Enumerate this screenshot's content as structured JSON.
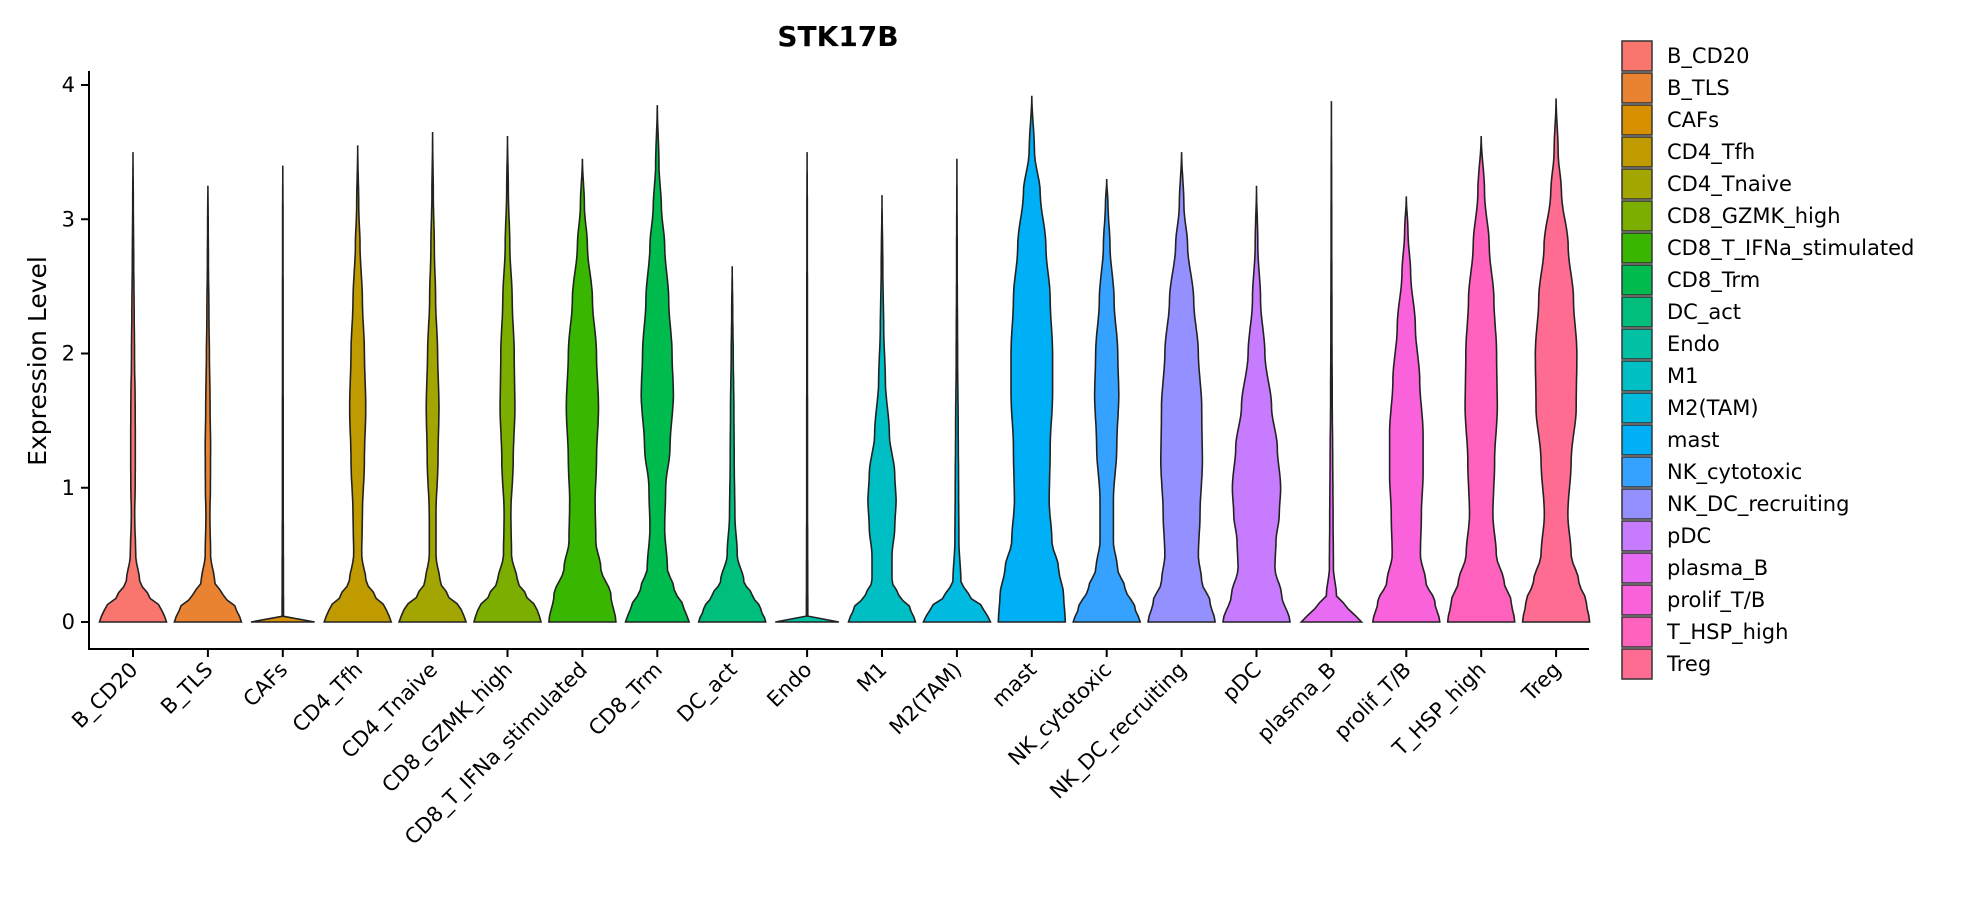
{
  "chart_data": {
    "type": "violin",
    "title": "STK17B",
    "xlabel": "",
    "ylabel": "Expression Level",
    "ylim": [
      -0.15,
      4.1
    ],
    "yticks": [
      0,
      1,
      2,
      3,
      4
    ],
    "ytick_labels": [
      "0",
      "1",
      "2",
      "3",
      "4"
    ],
    "legend_position": "right",
    "categories": [
      "B_CD20",
      "B_TLS",
      "CAFs",
      "CD4_Tfh",
      "CD4_Tnaive",
      "CD8_GZMK_high",
      "CD8_T_IFNa_stimulated",
      "CD8_Trm",
      "DC_act",
      "Endo",
      "M1",
      "M2(TAM)",
      "mast",
      "NK_cytotoxic",
      "NK_DC_recruiting",
      "pDC",
      "plasma_B",
      "prolif_T/B",
      "T_HSP_high",
      "Treg"
    ],
    "colors": [
      "#F8766D",
      "#EA8331",
      "#D89000",
      "#C09B00",
      "#A3A500",
      "#7CAE00",
      "#39B600",
      "#00BB4E",
      "#00BF7D",
      "#00C1A3",
      "#00BFC4",
      "#00BAE0",
      "#00B0F6",
      "#35A2FF",
      "#9590FF",
      "#C77CFF",
      "#E76BF3",
      "#FA62DB",
      "#FF62BC",
      "#FF6C91"
    ],
    "series": [
      {
        "name": "B_CD20",
        "max": 3.5,
        "profile": [
          [
            0,
            1.0
          ],
          [
            0.1,
            0.85
          ],
          [
            0.2,
            0.45
          ],
          [
            0.3,
            0.2
          ],
          [
            0.5,
            0.08
          ],
          [
            0.8,
            0.05
          ],
          [
            1.0,
            0.065
          ],
          [
            1.3,
            0.07
          ],
          [
            1.6,
            0.065
          ],
          [
            2.0,
            0.045
          ],
          [
            2.3,
            0.035
          ],
          [
            2.7,
            0.02
          ],
          [
            3.1,
            0.01
          ],
          [
            3.5,
            0.0
          ]
        ]
      },
      {
        "name": "B_TLS",
        "max": 3.25,
        "profile": [
          [
            0,
            1.0
          ],
          [
            0.1,
            0.85
          ],
          [
            0.2,
            0.45
          ],
          [
            0.3,
            0.2
          ],
          [
            0.5,
            0.08
          ],
          [
            0.8,
            0.06
          ],
          [
            1.0,
            0.075
          ],
          [
            1.3,
            0.08
          ],
          [
            1.6,
            0.065
          ],
          [
            2.0,
            0.045
          ],
          [
            2.3,
            0.03
          ],
          [
            2.7,
            0.015
          ],
          [
            3.0,
            0.008
          ],
          [
            3.25,
            0.0
          ]
        ]
      },
      {
        "name": "CAFs",
        "max": 3.4,
        "profile": [
          [
            0,
            0.95
          ],
          [
            0.01,
            0.25
          ],
          [
            0.03,
            0.02
          ],
          [
            1.0,
            0.012
          ],
          [
            2.0,
            0.01
          ],
          [
            3.0,
            0.006
          ],
          [
            3.4,
            0.0
          ]
        ]
      },
      {
        "name": "CD4_Tfh",
        "max": 3.55,
        "profile": [
          [
            0,
            1.0
          ],
          [
            0.1,
            0.85
          ],
          [
            0.2,
            0.5
          ],
          [
            0.3,
            0.25
          ],
          [
            0.5,
            0.12
          ],
          [
            0.8,
            0.14
          ],
          [
            1.2,
            0.2
          ],
          [
            1.6,
            0.24
          ],
          [
            2.0,
            0.2
          ],
          [
            2.4,
            0.14
          ],
          [
            2.8,
            0.07
          ],
          [
            3.1,
            0.03
          ],
          [
            3.55,
            0.0
          ]
        ]
      },
      {
        "name": "CD4_Tnaive",
        "max": 3.65,
        "profile": [
          [
            0,
            1.0
          ],
          [
            0.1,
            0.85
          ],
          [
            0.2,
            0.45
          ],
          [
            0.3,
            0.22
          ],
          [
            0.5,
            0.1
          ],
          [
            0.8,
            0.1
          ],
          [
            1.2,
            0.16
          ],
          [
            1.6,
            0.19
          ],
          [
            2.0,
            0.15
          ],
          [
            2.4,
            0.09
          ],
          [
            2.8,
            0.05
          ],
          [
            3.2,
            0.02
          ],
          [
            3.65,
            0.0
          ]
        ]
      },
      {
        "name": "CD8_GZMK_high",
        "max": 3.62,
        "profile": [
          [
            0,
            1.0
          ],
          [
            0.1,
            0.88
          ],
          [
            0.2,
            0.55
          ],
          [
            0.3,
            0.3
          ],
          [
            0.5,
            0.12
          ],
          [
            0.8,
            0.1
          ],
          [
            1.2,
            0.17
          ],
          [
            1.6,
            0.22
          ],
          [
            2.0,
            0.2
          ],
          [
            2.4,
            0.14
          ],
          [
            2.8,
            0.07
          ],
          [
            3.2,
            0.025
          ],
          [
            3.62,
            0.0
          ]
        ]
      },
      {
        "name": "CD8_T_IFNa_stimulated",
        "max": 3.45,
        "profile": [
          [
            0,
            1.0
          ],
          [
            0.2,
            0.85
          ],
          [
            0.4,
            0.55
          ],
          [
            0.6,
            0.4
          ],
          [
            0.9,
            0.38
          ],
          [
            1.2,
            0.42
          ],
          [
            1.6,
            0.48
          ],
          [
            2.0,
            0.42
          ],
          [
            2.4,
            0.3
          ],
          [
            2.8,
            0.15
          ],
          [
            3.1,
            0.06
          ],
          [
            3.45,
            0.0
          ]
        ]
      },
      {
        "name": "CD8_Trm",
        "max": 3.85,
        "profile": [
          [
            0,
            0.95
          ],
          [
            0.1,
            0.8
          ],
          [
            0.25,
            0.5
          ],
          [
            0.4,
            0.3
          ],
          [
            0.7,
            0.22
          ],
          [
            1.0,
            0.25
          ],
          [
            1.3,
            0.38
          ],
          [
            1.7,
            0.48
          ],
          [
            2.0,
            0.44
          ],
          [
            2.4,
            0.34
          ],
          [
            2.8,
            0.22
          ],
          [
            3.1,
            0.12
          ],
          [
            3.4,
            0.05
          ],
          [
            3.85,
            0.0
          ]
        ]
      },
      {
        "name": "DC_act",
        "max": 2.65,
        "profile": [
          [
            0,
            1.0
          ],
          [
            0.1,
            0.85
          ],
          [
            0.2,
            0.6
          ],
          [
            0.3,
            0.35
          ],
          [
            0.5,
            0.15
          ],
          [
            0.8,
            0.08
          ],
          [
            1.2,
            0.06
          ],
          [
            1.6,
            0.05
          ],
          [
            2.0,
            0.03
          ],
          [
            2.3,
            0.015
          ],
          [
            2.65,
            0.0
          ]
        ]
      },
      {
        "name": "Endo",
        "max": 3.5,
        "profile": [
          [
            0,
            0.95
          ],
          [
            0.01,
            0.25
          ],
          [
            0.03,
            0.02
          ],
          [
            1.0,
            0.012
          ],
          [
            2.0,
            0.01
          ],
          [
            3.0,
            0.006
          ],
          [
            3.5,
            0.0
          ]
        ]
      },
      {
        "name": "M1",
        "max": 3.18,
        "profile": [
          [
            0,
            1.0
          ],
          [
            0.1,
            0.85
          ],
          [
            0.2,
            0.5
          ],
          [
            0.3,
            0.3
          ],
          [
            0.5,
            0.3
          ],
          [
            0.7,
            0.38
          ],
          [
            0.9,
            0.42
          ],
          [
            1.1,
            0.38
          ],
          [
            1.4,
            0.22
          ],
          [
            1.8,
            0.1
          ],
          [
            2.2,
            0.05
          ],
          [
            2.6,
            0.025
          ],
          [
            3.18,
            0.0
          ]
        ]
      },
      {
        "name": "M2(TAM)",
        "max": 3.45,
        "profile": [
          [
            0,
            1.0
          ],
          [
            0.1,
            0.8
          ],
          [
            0.2,
            0.35
          ],
          [
            0.3,
            0.12
          ],
          [
            0.6,
            0.06
          ],
          [
            1.0,
            0.05
          ],
          [
            1.4,
            0.04
          ],
          [
            2.0,
            0.02
          ],
          [
            2.6,
            0.01
          ],
          [
            3.45,
            0.0
          ]
        ]
      },
      {
        "name": "mast",
        "max": 3.92,
        "profile": [
          [
            0,
            1.0
          ],
          [
            0.2,
            0.95
          ],
          [
            0.4,
            0.8
          ],
          [
            0.6,
            0.6
          ],
          [
            0.9,
            0.52
          ],
          [
            1.3,
            0.55
          ],
          [
            1.7,
            0.62
          ],
          [
            2.0,
            0.62
          ],
          [
            2.4,
            0.55
          ],
          [
            2.8,
            0.42
          ],
          [
            3.2,
            0.25
          ],
          [
            3.5,
            0.08
          ],
          [
            3.92,
            0.0
          ]
        ]
      },
      {
        "name": "NK_cytotoxic",
        "max": 3.3,
        "profile": [
          [
            0,
            1.0
          ],
          [
            0.1,
            0.85
          ],
          [
            0.25,
            0.55
          ],
          [
            0.4,
            0.32
          ],
          [
            0.6,
            0.2
          ],
          [
            0.9,
            0.2
          ],
          [
            1.3,
            0.3
          ],
          [
            1.7,
            0.36
          ],
          [
            2.0,
            0.33
          ],
          [
            2.4,
            0.22
          ],
          [
            2.8,
            0.1
          ],
          [
            3.1,
            0.04
          ],
          [
            3.3,
            0.0
          ]
        ]
      },
      {
        "name": "NK_DC_recruiting",
        "max": 3.5,
        "profile": [
          [
            0,
            1.0
          ],
          [
            0.15,
            0.85
          ],
          [
            0.3,
            0.6
          ],
          [
            0.5,
            0.5
          ],
          [
            0.8,
            0.55
          ],
          [
            1.2,
            0.62
          ],
          [
            1.6,
            0.6
          ],
          [
            2.0,
            0.5
          ],
          [
            2.4,
            0.36
          ],
          [
            2.8,
            0.18
          ],
          [
            3.1,
            0.07
          ],
          [
            3.5,
            0.0
          ]
        ]
      },
      {
        "name": "pDC",
        "max": 3.25,
        "profile": [
          [
            0,
            1.0
          ],
          [
            0.2,
            0.75
          ],
          [
            0.4,
            0.55
          ],
          [
            0.6,
            0.58
          ],
          [
            0.8,
            0.68
          ],
          [
            1.0,
            0.72
          ],
          [
            1.3,
            0.62
          ],
          [
            1.6,
            0.45
          ],
          [
            2.0,
            0.25
          ],
          [
            2.4,
            0.12
          ],
          [
            2.8,
            0.04
          ],
          [
            3.25,
            0.0
          ]
        ]
      },
      {
        "name": "plasma_B",
        "max": 3.88,
        "profile": [
          [
            0,
            0.9
          ],
          [
            0.1,
            0.5
          ],
          [
            0.2,
            0.15
          ],
          [
            0.4,
            0.06
          ],
          [
            0.8,
            0.05
          ],
          [
            1.2,
            0.04
          ],
          [
            1.6,
            0.025
          ],
          [
            2.2,
            0.015
          ],
          [
            3.0,
            0.008
          ],
          [
            3.88,
            0.0
          ]
        ]
      },
      {
        "name": "prolif_T/B",
        "max": 3.17,
        "profile": [
          [
            0,
            1.0
          ],
          [
            0.15,
            0.85
          ],
          [
            0.3,
            0.58
          ],
          [
            0.5,
            0.42
          ],
          [
            0.8,
            0.45
          ],
          [
            1.1,
            0.5
          ],
          [
            1.4,
            0.5
          ],
          [
            1.8,
            0.4
          ],
          [
            2.2,
            0.27
          ],
          [
            2.6,
            0.13
          ],
          [
            2.9,
            0.05
          ],
          [
            3.17,
            0.0
          ]
        ]
      },
      {
        "name": "T_HSP_high",
        "max": 3.62,
        "profile": [
          [
            0,
            1.0
          ],
          [
            0.15,
            0.9
          ],
          [
            0.3,
            0.68
          ],
          [
            0.5,
            0.45
          ],
          [
            0.8,
            0.35
          ],
          [
            1.2,
            0.4
          ],
          [
            1.6,
            0.48
          ],
          [
            2.0,
            0.46
          ],
          [
            2.4,
            0.38
          ],
          [
            2.8,
            0.24
          ],
          [
            3.2,
            0.1
          ],
          [
            3.62,
            0.0
          ]
        ]
      },
      {
        "name": "Treg",
        "max": 3.9,
        "profile": [
          [
            0,
            1.0
          ],
          [
            0.15,
            0.9
          ],
          [
            0.3,
            0.68
          ],
          [
            0.5,
            0.45
          ],
          [
            0.8,
            0.35
          ],
          [
            1.2,
            0.45
          ],
          [
            1.6,
            0.6
          ],
          [
            2.0,
            0.62
          ],
          [
            2.4,
            0.52
          ],
          [
            2.8,
            0.36
          ],
          [
            3.2,
            0.16
          ],
          [
            3.5,
            0.06
          ],
          [
            3.9,
            0.0
          ]
        ]
      }
    ]
  }
}
